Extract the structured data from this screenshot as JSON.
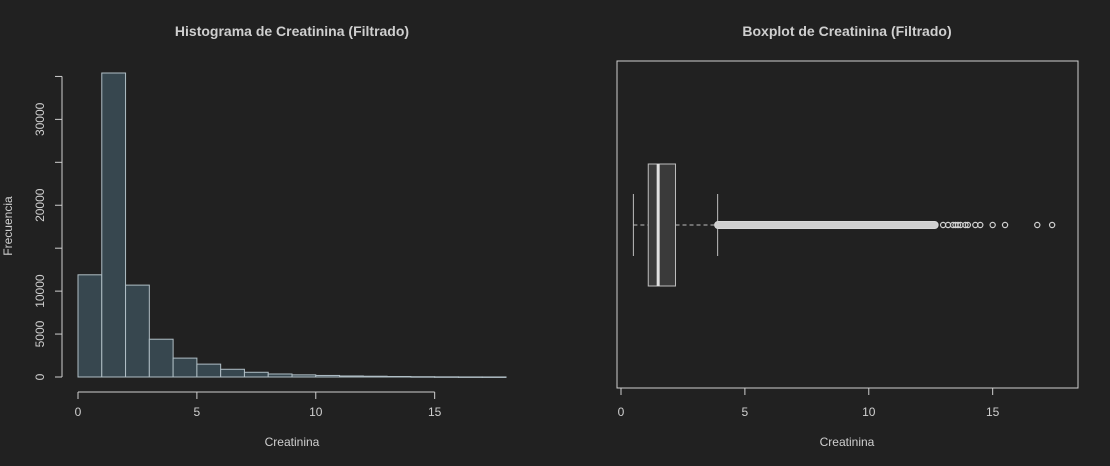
{
  "chart_data": [
    {
      "type": "histogram",
      "title": "Histograma de Creatinina (Filtrado)",
      "xlabel": "Creatinina",
      "ylabel": "Frecuencia",
      "bin_width": 1,
      "bins": [
        {
          "start": 0,
          "end": 1,
          "count": 11900
        },
        {
          "start": 1,
          "end": 2,
          "count": 35400
        },
        {
          "start": 2,
          "end": 3,
          "count": 10700
        },
        {
          "start": 3,
          "end": 4,
          "count": 4400
        },
        {
          "start": 4,
          "end": 5,
          "count": 2200
        },
        {
          "start": 5,
          "end": 6,
          "count": 1500
        },
        {
          "start": 6,
          "end": 7,
          "count": 900
        },
        {
          "start": 7,
          "end": 8,
          "count": 550
        },
        {
          "start": 8,
          "end": 9,
          "count": 350
        },
        {
          "start": 9,
          "end": 10,
          "count": 250
        },
        {
          "start": 10,
          "end": 11,
          "count": 180
        },
        {
          "start": 11,
          "end": 12,
          "count": 120
        },
        {
          "start": 12,
          "end": 13,
          "count": 90
        },
        {
          "start": 13,
          "end": 14,
          "count": 60
        },
        {
          "start": 14,
          "end": 15,
          "count": 35
        },
        {
          "start": 15,
          "end": 16,
          "count": 20
        },
        {
          "start": 16,
          "end": 17,
          "count": 10
        },
        {
          "start": 17,
          "end": 18,
          "count": 8
        }
      ],
      "xlim": [
        0,
        18
      ],
      "ylim": [
        0,
        35400
      ],
      "x_ticks": [
        "0",
        "5",
        "10",
        "15"
      ],
      "y_ticks": [
        "0",
        "5000",
        "10000",
        "20000",
        "30000"
      ],
      "y_tick_values": [
        0,
        5000,
        10000,
        20000,
        30000
      ],
      "y_minor_ticks": [
        15000,
        25000,
        35000
      ],
      "bar_fill": "#37474f",
      "bar_stroke": "#b0bec5"
    },
    {
      "type": "boxplot",
      "title": "Boxplot de Creatinina (Filtrado)",
      "xlabel": "Creatinina",
      "orientation": "horizontal",
      "whisker_low": 0.5,
      "q1": 1.1,
      "median": 1.5,
      "q3": 2.2,
      "whisker_high": 3.9,
      "outliers_dense_range": [
        3.9,
        12.8
      ],
      "outliers": [
        13.0,
        13.2,
        13.4,
        13.5,
        13.6,
        13.7,
        13.9,
        14.0,
        14.3,
        14.5,
        15.0,
        15.5,
        16.8,
        17.4
      ],
      "xlim": [
        0,
        18
      ],
      "x_ticks": [
        "0",
        "5",
        "10",
        "15"
      ],
      "x_tick_values": [
        0,
        5,
        10,
        15
      ],
      "box_fill": "#3a3a3a",
      "line_color": "#bdbdbd"
    }
  ]
}
